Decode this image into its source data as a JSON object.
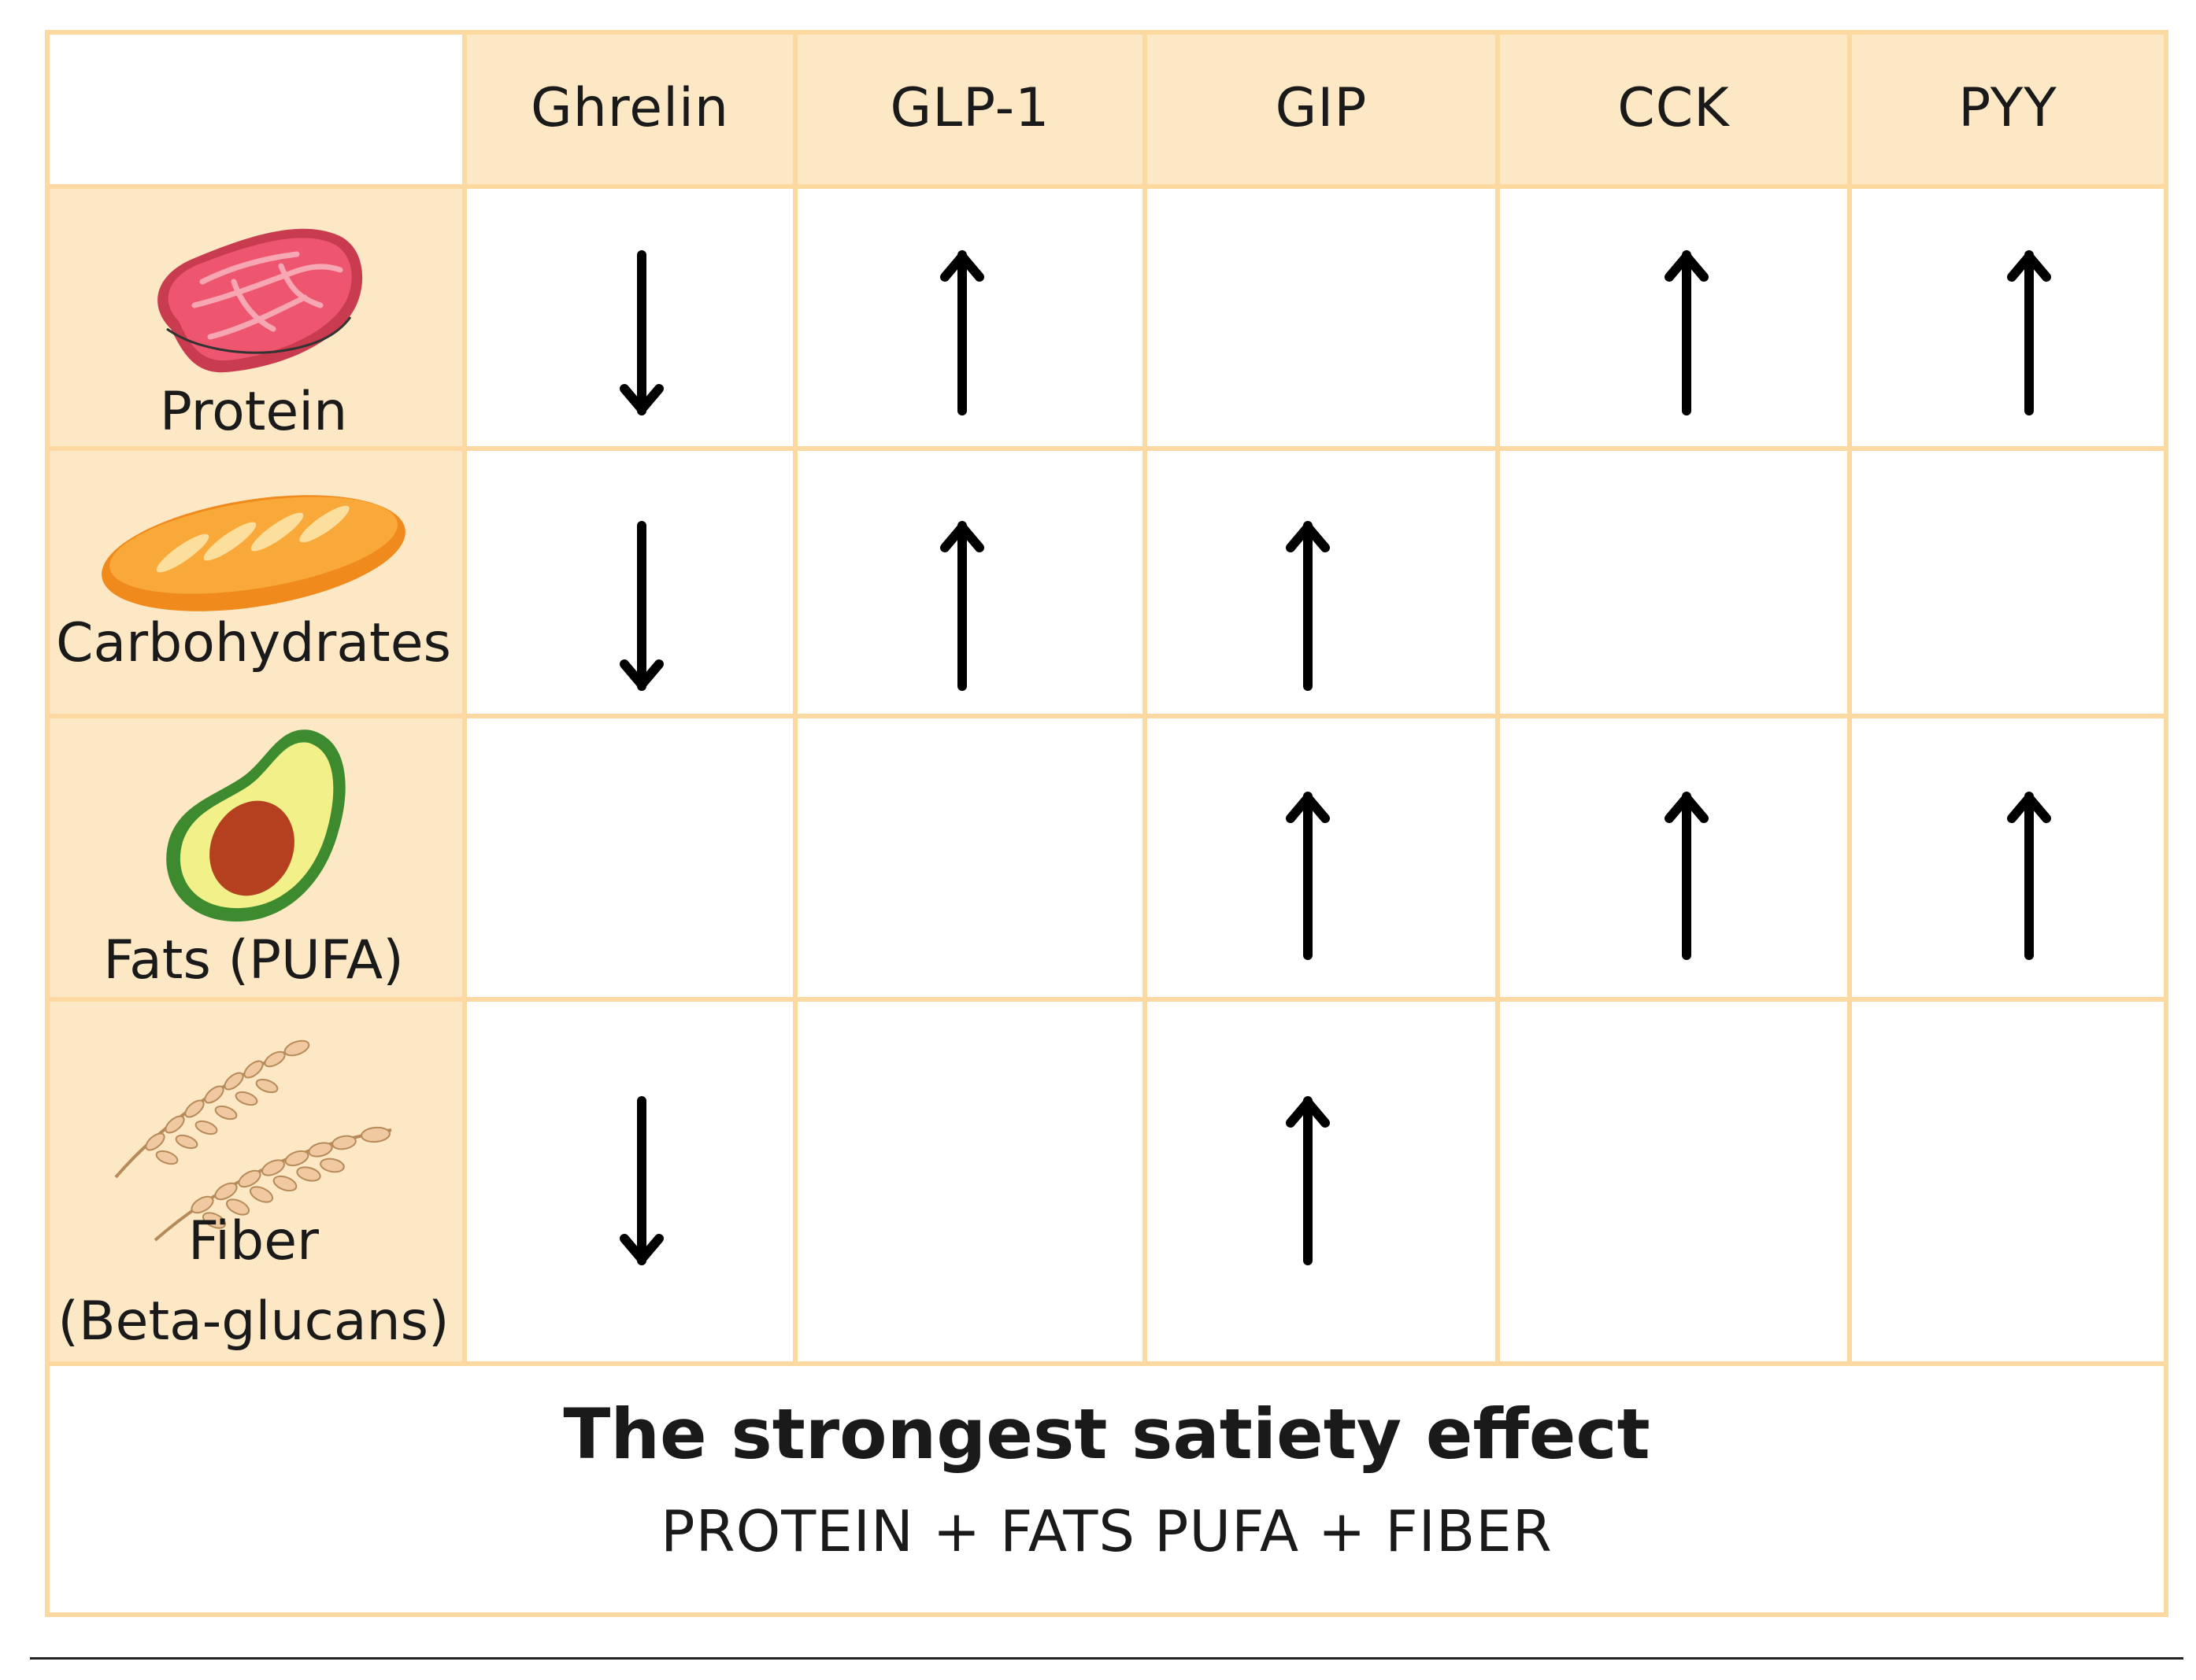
{
  "columns": [
    "Ghrelin",
    "GLP-1",
    "GIP",
    "CCK",
    "PYY"
  ],
  "rows": [
    {
      "label_lines": [
        "Protein"
      ],
      "icon": "meat-icon",
      "effects": [
        "down",
        "up",
        "",
        "up",
        "up"
      ]
    },
    {
      "label_lines": [
        "Carbohydrates"
      ],
      "icon": "bread-icon",
      "effects": [
        "down",
        "up",
        "up",
        "",
        ""
      ]
    },
    {
      "label_lines": [
        "Fats (PUFA)"
      ],
      "icon": "avocado-icon",
      "effects": [
        "",
        "",
        "up",
        "up",
        "up"
      ]
    },
    {
      "label_lines": [
        "Fiber",
        "(Beta-glucans)"
      ],
      "icon": "wheat-icon",
      "effects": [
        "down",
        "",
        "up",
        "",
        ""
      ]
    }
  ],
  "footer": {
    "title": "The strongest satiety effect",
    "subtitle": "PROTEIN + FATS PUFA + FIBER"
  },
  "colors": {
    "border": "#fbd9a0",
    "header_fill": "#fde8c6",
    "arrow": "#000000"
  }
}
